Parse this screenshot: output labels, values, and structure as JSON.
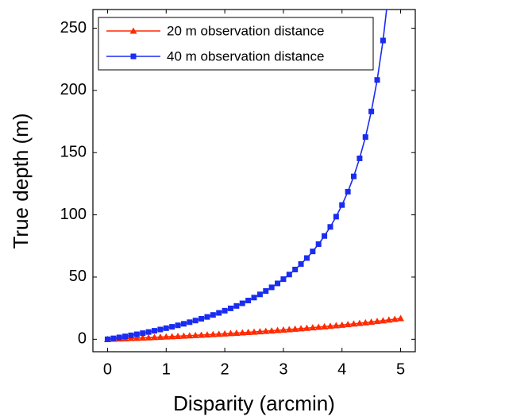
{
  "chart_data": {
    "type": "line",
    "x_label": "Disparity (arcmin)",
    "y_label": "True depth (m)",
    "x": [
      0,
      0.1,
      0.2,
      0.3,
      0.4,
      0.5,
      0.6,
      0.7,
      0.8,
      0.9,
      1,
      1.1,
      1.2,
      1.3,
      1.4,
      1.5,
      1.6,
      1.7,
      1.8,
      1.9,
      2,
      2.1,
      2.2,
      2.3,
      2.4,
      2.5,
      2.6,
      2.7,
      2.8,
      2.9,
      3,
      3.1,
      3.2,
      3.3,
      3.4,
      3.5,
      3.6,
      3.7,
      3.8,
      3.9,
      4,
      4.1,
      4.2,
      4.3,
      4.4,
      4.5,
      4.6,
      4.7,
      4.8,
      4.9,
      5
    ],
    "series": [
      {
        "name": "20 m observation distance",
        "color": "#ff2a00",
        "marker": "triangle",
        "values": [
          0,
          0.184,
          0.372,
          0.563,
          0.757,
          0.955,
          1.158,
          1.364,
          1.574,
          1.788,
          2.007,
          2.23,
          2.458,
          2.69,
          2.927,
          3.169,
          3.417,
          3.669,
          3.928,
          4.191,
          4.461,
          4.737,
          5.019,
          5.308,
          5.604,
          5.906,
          6.216,
          6.533,
          6.858,
          7.191,
          7.532,
          7.882,
          8.241,
          8.609,
          8.988,
          9.376,
          9.775,
          10.18,
          10.61,
          11.04,
          11.48,
          11.94,
          12.41,
          12.9,
          13.4,
          13.92,
          14.45,
          15.0,
          15.57,
          16.16,
          16.76
        ]
      },
      {
        "name": "40 m observation distance",
        "color": "#1a2cf0",
        "marker": "square",
        "values": [
          0,
          0.743,
          1.514,
          2.315,
          3.148,
          4.014,
          4.915,
          5.854,
          6.833,
          7.855,
          8.923,
          10.04,
          11.21,
          12.43,
          13.72,
          15.06,
          16.48,
          17.97,
          19.55,
          21.21,
          22.97,
          24.83,
          26.8,
          28.9,
          31.14,
          33.52,
          36.07,
          38.81,
          41.74,
          44.91,
          48.33,
          52.04,
          56.07,
          60.47,
          65.29,
          70.6,
          76.47,
          83.01,
          90.32,
          98.55,
          107.9,
          118.6,
          130.9,
          145.4,
          162.5,
          183.1,
          208.4,
          240.1,
          281.1,
          null,
          null
        ]
      }
    ],
    "xlim": [
      -0.25,
      5.25
    ],
    "ylim": [
      -10,
      265
    ],
    "xticks": [
      0,
      1,
      2,
      3,
      4,
      5
    ],
    "yticks": [
      0,
      50,
      100,
      150,
      200,
      250
    ],
    "legend": "upper left"
  }
}
